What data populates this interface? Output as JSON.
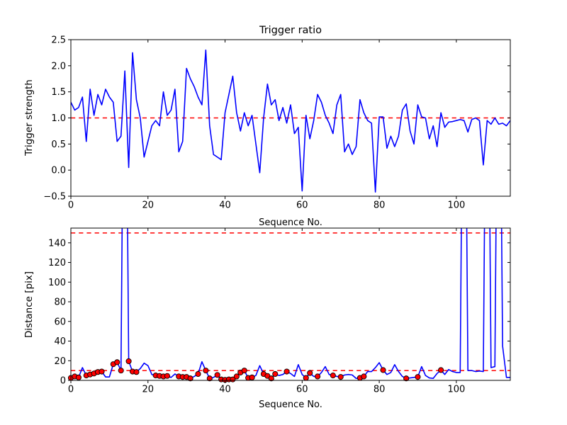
{
  "figure": {
    "background": "#ffffff",
    "spine_color": "#000000",
    "tick_color": "#000000"
  },
  "chart_data": [
    {
      "type": "line",
      "title": "Trigger ratio",
      "xlabel": "Sequence No.",
      "ylabel": "Trigger strength",
      "xlim": [
        0,
        114
      ],
      "ylim": [
        -0.5,
        2.5
      ],
      "xticks": [
        0,
        20,
        40,
        60,
        80,
        100
      ],
      "xtick_labels": [
        "0",
        "20",
        "40",
        "60",
        "80",
        "100"
      ],
      "yticks": [
        -0.5,
        0.0,
        0.5,
        1.0,
        1.5,
        2.0,
        2.5
      ],
      "ytick_labels": [
        "−0.5",
        "0.0",
        "0.5",
        "1.0",
        "1.5",
        "2.0",
        "2.5"
      ],
      "grid": false,
      "line_color": "#0000ff",
      "line_width": 1.6,
      "thresholds": [
        {
          "y": 1.0,
          "color": "#ff0000",
          "style": "dashed"
        }
      ],
      "values": [
        1.3,
        1.15,
        1.2,
        1.4,
        0.55,
        1.55,
        1.05,
        1.45,
        1.25,
        1.55,
        1.4,
        1.3,
        0.55,
        0.65,
        1.9,
        0.05,
        2.25,
        1.35,
        1.0,
        0.25,
        0.55,
        0.85,
        0.95,
        0.85,
        1.5,
        1.05,
        1.15,
        1.55,
        0.35,
        0.55,
        1.95,
        1.75,
        1.6,
        1.4,
        1.25,
        2.3,
        0.85,
        0.3,
        0.25,
        0.2,
        1.1,
        1.45,
        1.8,
        1.1,
        0.75,
        1.1,
        0.85,
        1.05,
        0.5,
        -0.05,
        1.0,
        1.65,
        1.25,
        1.35,
        0.95,
        1.2,
        0.9,
        1.25,
        0.7,
        0.82,
        -0.4,
        1.05,
        0.6,
        0.95,
        1.45,
        1.3,
        1.05,
        0.9,
        0.7,
        1.25,
        1.45,
        0.35,
        0.5,
        0.3,
        0.45,
        1.35,
        1.1,
        0.95,
        0.9,
        -0.42,
        1.02,
        1.02,
        0.42,
        0.65,
        0.45,
        0.65,
        1.15,
        1.27,
        0.75,
        0.5,
        1.25,
        1.02,
        1.0,
        0.6,
        0.85,
        0.45,
        1.1,
        0.82,
        0.92,
        0.93,
        0.95,
        0.97,
        0.95,
        0.73,
        0.97,
        1.0,
        0.95,
        0.1,
        0.95,
        0.88,
        1.0,
        0.88,
        0.9,
        0.85,
        0.95
      ]
    },
    {
      "type": "line",
      "title": "",
      "xlabel": "Sequence No.",
      "ylabel": "Distance [pix]",
      "xlim": [
        0,
        114
      ],
      "ylim": [
        0,
        155
      ],
      "xticks": [
        0,
        20,
        40,
        60,
        80,
        100
      ],
      "xtick_labels": [
        "0",
        "20",
        "40",
        "60",
        "80",
        "100"
      ],
      "yticks": [
        0,
        20,
        40,
        60,
        80,
        100,
        120,
        140
      ],
      "ytick_labels": [
        "0",
        "20",
        "40",
        "60",
        "80",
        "100",
        "120",
        "140"
      ],
      "grid": false,
      "line_color": "#0000ff",
      "line_width": 1.6,
      "thresholds": [
        {
          "y": 150,
          "color": "#ff0000",
          "style": "dashed"
        },
        {
          "y": 10,
          "color": "#ff0000",
          "style": "dashed"
        }
      ],
      "values": [
        2.5,
        4,
        3,
        13,
        5,
        6,
        7,
        8.5,
        9,
        3.5,
        3.5,
        16.5,
        18.5,
        10,
        500,
        19.5,
        9,
        8.5,
        12,
        17.5,
        15,
        6,
        5,
        4.5,
        4,
        4.5,
        3,
        6.5,
        4,
        3.5,
        3.5,
        2,
        4,
        6.5,
        19,
        10,
        2,
        3,
        5.5,
        1,
        0.5,
        1,
        1,
        4,
        8,
        10,
        2.5,
        3,
        5,
        15,
        6.5,
        4.5,
        2,
        6.5,
        5,
        6,
        9,
        7,
        4,
        16,
        6,
        2.5,
        7.5,
        4,
        4,
        8,
        14,
        6,
        5,
        4,
        3.5,
        5.5,
        6,
        5.5,
        2,
        2.5,
        4,
        9,
        9,
        13,
        18,
        10.5,
        6,
        8,
        16,
        9,
        4,
        2,
        2.5,
        3,
        3.5,
        14,
        5,
        2.5,
        2,
        7,
        10.5,
        6,
        11,
        9,
        8,
        8,
        500,
        10,
        10,
        9,
        9.5,
        9,
        500,
        13,
        14,
        500,
        35,
        3,
        3
      ],
      "markers": {
        "shape": "circle",
        "fill_color": "#ff0000",
        "edge_color": "#000000",
        "x": [
          0,
          1,
          2,
          4,
          5,
          6,
          7,
          8,
          11,
          12,
          13,
          15,
          16,
          17,
          22,
          23,
          24,
          25,
          28,
          29,
          30,
          31,
          33,
          35,
          36,
          38,
          39,
          40,
          41,
          42,
          43,
          44,
          45,
          46,
          47,
          50,
          51,
          52,
          53,
          56,
          61,
          62,
          64,
          68,
          70,
          75,
          76,
          81,
          87,
          90,
          96
        ]
      }
    }
  ]
}
